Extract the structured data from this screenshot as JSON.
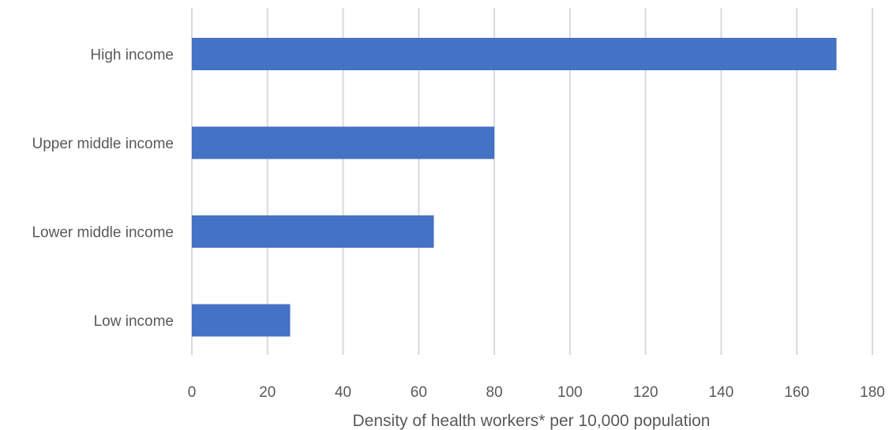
{
  "chart_data": {
    "type": "bar",
    "orientation": "horizontal",
    "categories": [
      "High income",
      "Upper middle income",
      "Lower middle income",
      "Low income"
    ],
    "values": [
      170.5,
      80,
      64,
      26
    ],
    "title": "",
    "xlabel": "Density of health workers* per 10,000 population",
    "ylabel": "",
    "xlim": [
      0,
      180
    ],
    "xticks": [
      "0",
      "20",
      "40",
      "60",
      "80",
      "100",
      "120",
      "140",
      "160",
      "180"
    ],
    "grid": "vertical",
    "legend": "none",
    "bar_color": "#4472c4",
    "grid_color": "#d9d9d9",
    "text_color": "#595959"
  }
}
